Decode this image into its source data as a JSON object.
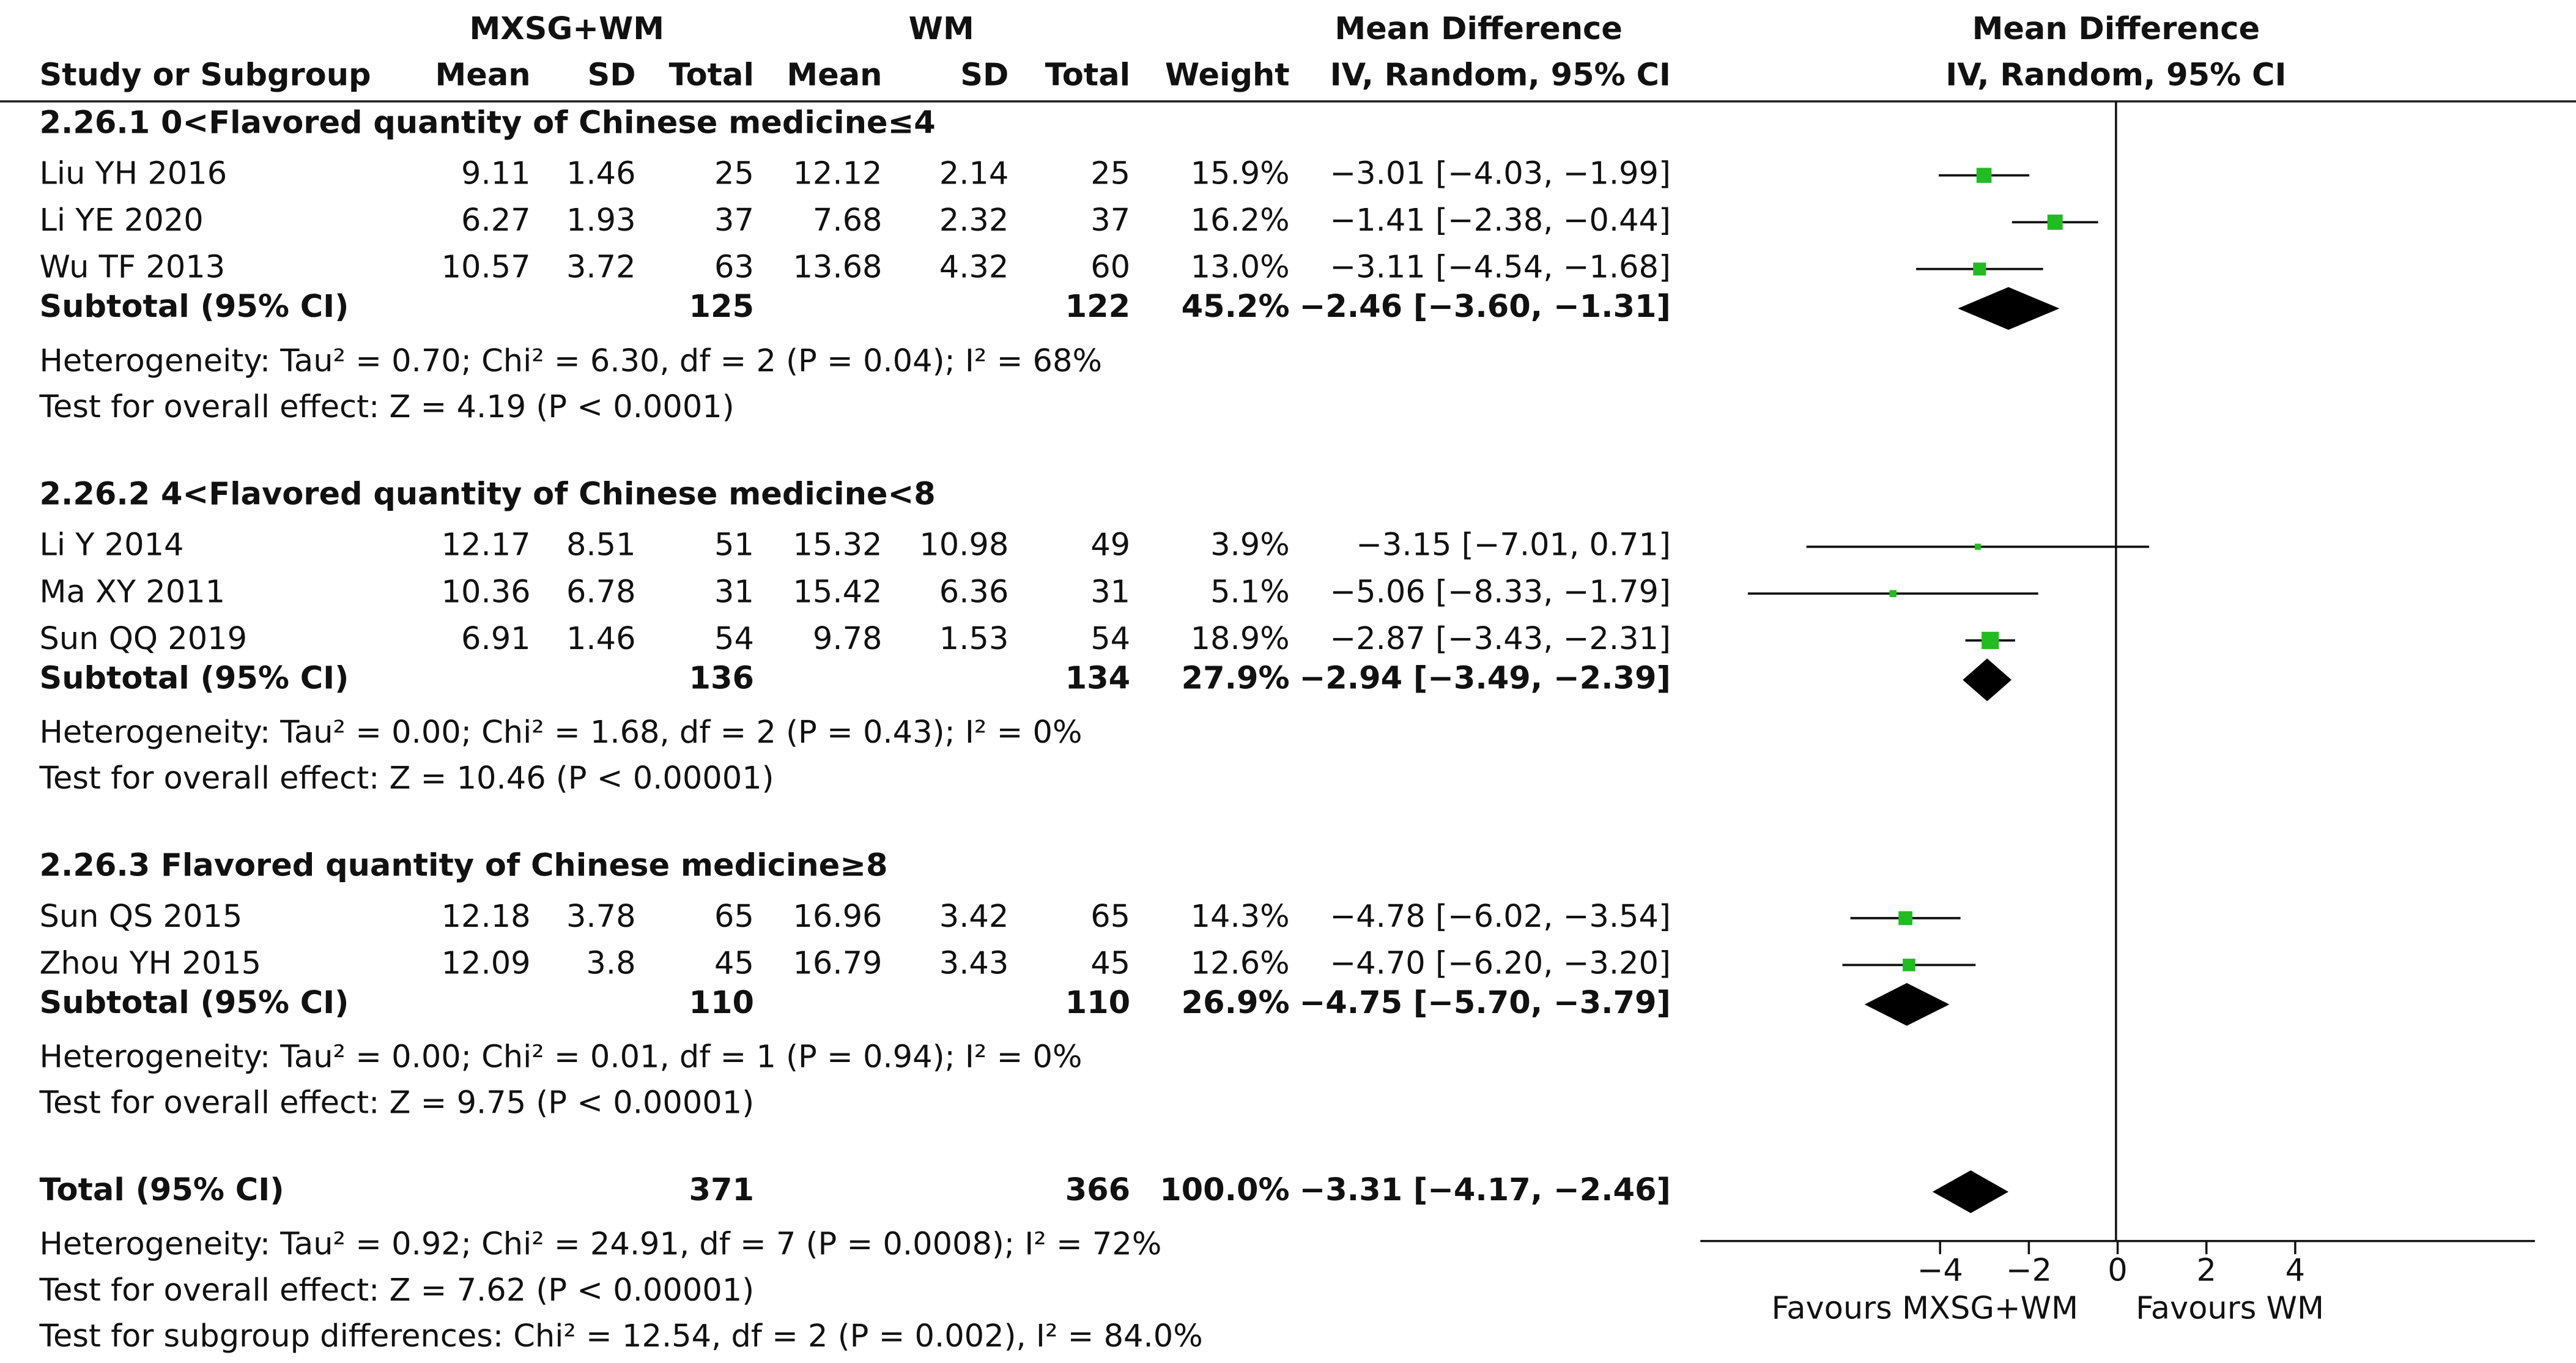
{
  "chart_data": {
    "type": "forest",
    "group_e": "MXSG+WM",
    "group_c": "WM",
    "effect_header": "Mean Difference",
    "plot_header": "Mean Difference",
    "plot_subheader": "IV, Random, 95% CI",
    "columns": {
      "study": "Study or Subgroup",
      "e_mean": "Mean",
      "e_sd": "SD",
      "e_total": "Total",
      "c_mean": "Mean",
      "c_sd": "SD",
      "c_total": "Total",
      "weight": "Weight",
      "ci": "IV, Random, 95% CI"
    },
    "subgroups": [
      {
        "title": "2.26.1 0<Flavored quantity of Chinese medicine≤4",
        "studies": [
          {
            "name": "Liu YH 2016",
            "e_mean": 9.11,
            "e_sd": 1.46,
            "e_total": 25,
            "c_mean": 12.12,
            "c_sd": 2.14,
            "c_total": 25,
            "weight": 15.9,
            "weight_label": "15.9%",
            "md": -3.01,
            "lo": -4.03,
            "hi": -1.99,
            "ci_label": "−3.01 [−4.03, −1.99]"
          },
          {
            "name": "Li YE 2020",
            "e_mean": 6.27,
            "e_sd": 1.93,
            "e_total": 37,
            "c_mean": 7.68,
            "c_sd": 2.32,
            "c_total": 37,
            "weight": 16.2,
            "weight_label": "16.2%",
            "md": -1.41,
            "lo": -2.38,
            "hi": -0.44,
            "ci_label": "−1.41 [−2.38, −0.44]"
          },
          {
            "name": "Wu TF 2013",
            "e_mean": 10.57,
            "e_sd": 3.72,
            "e_total": 63,
            "c_mean": 13.68,
            "c_sd": 4.32,
            "c_total": 60,
            "weight": 13.0,
            "weight_label": "13.0%",
            "md": -3.11,
            "lo": -4.54,
            "hi": -1.68,
            "ci_label": "−3.11 [−4.54, −1.68]"
          }
        ],
        "subtotal": {
          "label": "Subtotal (95% CI)",
          "e_total": 125,
          "c_total": 122,
          "weight": 45.2,
          "weight_label": "45.2%",
          "md": -2.46,
          "lo": -3.6,
          "hi": -1.31,
          "ci_label": "−2.46 [−3.60, −1.31]"
        },
        "heterogeneity": "Heterogeneity: Tau² = 0.70; Chi² = 6.30, df = 2 (P = 0.04); I² = 68%",
        "overall_effect": "Test for overall effect: Z = 4.19 (P < 0.0001)"
      },
      {
        "title": "2.26.2 4<Flavored quantity of Chinese medicine<8",
        "studies": [
          {
            "name": "Li Y 2014",
            "e_mean": 12.17,
            "e_sd": 8.51,
            "e_total": 51,
            "c_mean": 15.32,
            "c_sd": 10.98,
            "c_total": 49,
            "weight": 3.9,
            "weight_label": "3.9%",
            "md": -3.15,
            "lo": -7.01,
            "hi": 0.71,
            "ci_label": "−3.15 [−7.01, 0.71]"
          },
          {
            "name": "Ma XY 2011",
            "e_mean": 10.36,
            "e_sd": 6.78,
            "e_total": 31,
            "c_mean": 15.42,
            "c_sd": 6.36,
            "c_total": 31,
            "weight": 5.1,
            "weight_label": "5.1%",
            "md": -5.06,
            "lo": -8.33,
            "hi": -1.79,
            "ci_label": "−5.06 [−8.33, −1.79]"
          },
          {
            "name": "Sun QQ 2019",
            "e_mean": 6.91,
            "e_sd": 1.46,
            "e_total": 54,
            "c_mean": 9.78,
            "c_sd": 1.53,
            "c_total": 54,
            "weight": 18.9,
            "weight_label": "18.9%",
            "md": -2.87,
            "lo": -3.43,
            "hi": -2.31,
            "ci_label": "−2.87 [−3.43, −2.31]"
          }
        ],
        "subtotal": {
          "label": "Subtotal (95% CI)",
          "e_total": 136,
          "c_total": 134,
          "weight": 27.9,
          "weight_label": "27.9%",
          "md": -2.94,
          "lo": -3.49,
          "hi": -2.39,
          "ci_label": "−2.94 [−3.49, −2.39]"
        },
        "heterogeneity": "Heterogeneity: Tau² = 0.00; Chi² = 1.68, df = 2 (P = 0.43); I² = 0%",
        "overall_effect": "Test for overall effect: Z = 10.46 (P < 0.00001)"
      },
      {
        "title": "2.26.3 Flavored quantity of Chinese medicine≥8",
        "studies": [
          {
            "name": "Sun QS 2015",
            "e_mean": 12.18,
            "e_sd": 3.78,
            "e_total": 65,
            "c_mean": 16.96,
            "c_sd": 3.42,
            "c_total": 65,
            "weight": 14.3,
            "weight_label": "14.3%",
            "md": -4.78,
            "lo": -6.02,
            "hi": -3.54,
            "ci_label": "−4.78 [−6.02, −3.54]"
          },
          {
            "name": "Zhou YH 2015",
            "e_mean": 12.09,
            "e_sd": 3.8,
            "e_total": 45,
            "c_mean": 16.79,
            "c_sd": 3.43,
            "c_total": 45,
            "weight": 12.6,
            "weight_label": "12.6%",
            "md": -4.7,
            "lo": -6.2,
            "hi": -3.2,
            "ci_label": "−4.70 [−6.20, −3.20]"
          }
        ],
        "subtotal": {
          "label": "Subtotal (95% CI)",
          "e_total": 110,
          "c_total": 110,
          "weight": 26.9,
          "weight_label": "26.9%",
          "md": -4.75,
          "lo": -5.7,
          "hi": -3.79,
          "ci_label": "−4.75 [−5.70, −3.79]"
        },
        "heterogeneity": "Heterogeneity: Tau² = 0.00; Chi² = 0.01, df = 1 (P = 0.94); I² = 0%",
        "overall_effect": "Test for overall effect: Z = 9.75 (P < 0.00001)"
      }
    ],
    "total": {
      "label": "Total (95% CI)",
      "e_total": 371,
      "c_total": 366,
      "weight": 100.0,
      "weight_label": "100.0%",
      "md": -3.31,
      "lo": -4.17,
      "hi": -2.46,
      "ci_label": "−3.31 [−4.17, −2.46]",
      "heterogeneity": "Heterogeneity: Tau² = 0.92; Chi² = 24.91, df = 7 (P = 0.0008); I² = 72%",
      "overall_effect": "Test for overall effect: Z = 7.62 (P < 0.00001)",
      "subgroup_differences": "Test for subgroup differences: Chi² = 12.54, df = 2 (P = 0.002), I² = 84.0%"
    },
    "xlim": [
      -9.4,
      9.4
    ],
    "xticks": [
      {
        "value": -4,
        "label": "−4"
      },
      {
        "value": -2,
        "label": "−2"
      },
      0,
      2,
      4
    ],
    "favours_left": "Favours MXSG+WM",
    "favours_right": "Favours WM",
    "study_color": "#22bb22",
    "pooled_color": "#000000"
  }
}
